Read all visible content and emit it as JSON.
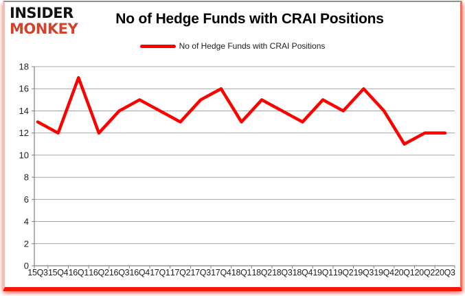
{
  "header": {
    "logo": {
      "line1": "INSIDER",
      "line2": "MONKEY"
    },
    "title": "No of Hedge Funds with CRAI Positions"
  },
  "legend": {
    "label": "No of Hedge Funds with CRAI Positions"
  },
  "chart_data": {
    "type": "line",
    "title": "No of Hedge Funds with CRAI Positions",
    "categories": [
      "15Q3",
      "15Q4",
      "16Q1",
      "16Q2",
      "16Q3",
      "16Q4",
      "17Q1",
      "17Q2",
      "17Q3",
      "17Q4",
      "18Q1",
      "18Q2",
      "18Q3",
      "18Q4",
      "19Q1",
      "19Q2",
      "19Q3",
      "19Q4",
      "20Q1",
      "20Q2",
      "20Q3"
    ],
    "series": [
      {
        "name": "No of Hedge Funds with CRAI Positions",
        "color": "#fe0000",
        "values": [
          13,
          12,
          17,
          12,
          14,
          15,
          14,
          13,
          15,
          16,
          13,
          15,
          14,
          13,
          15,
          14,
          16,
          14,
          11,
          12,
          12
        ]
      }
    ],
    "xlabel": "",
    "ylabel": "",
    "ylim": [
      0,
      18
    ],
    "ytick_step": 2,
    "grid": true,
    "legend_position": "top"
  },
  "colors": {
    "line": "#fe0000",
    "grid": "#a6a6a6",
    "axis": "#808080",
    "tick_text": "#20202a",
    "logo_red": "#d0442e",
    "frame_red": "#fa1505"
  }
}
